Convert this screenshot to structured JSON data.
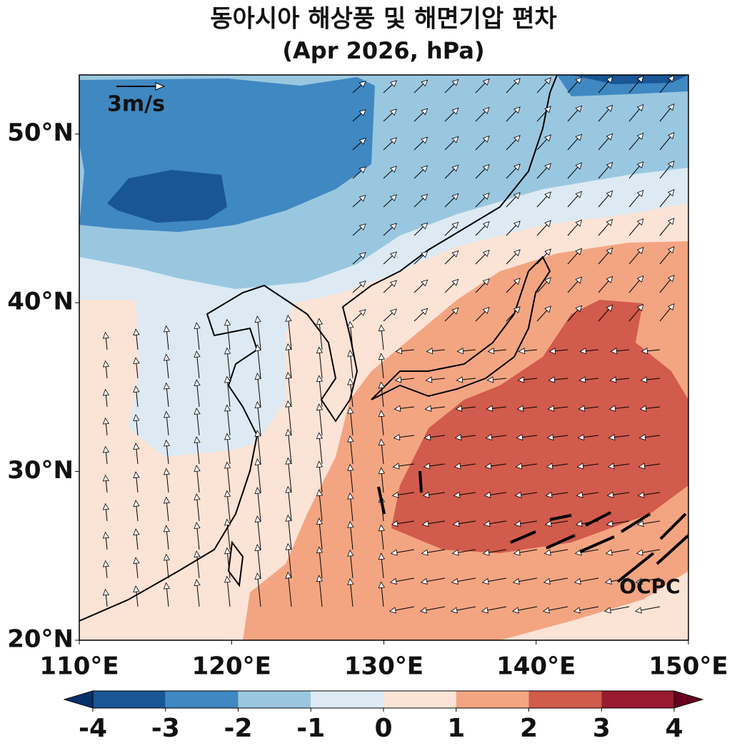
{
  "title": "동아시아 해상풍 및 해면기압 편차",
  "subtitle": "(Apr 2026, hPa)",
  "map": {
    "lon_range": [
      110,
      150
    ],
    "lat_range": [
      20,
      53.5
    ],
    "lon_ticks": [
      {
        "value": 110,
        "label": "110°E"
      },
      {
        "value": 120,
        "label": "120°E"
      },
      {
        "value": 130,
        "label": "130°E"
      },
      {
        "value": 140,
        "label": "140°E"
      },
      {
        "value": 150,
        "label": "150°E"
      }
    ],
    "lat_ticks": [
      {
        "value": 20,
        "label": "20°N"
      },
      {
        "value": 30,
        "label": "30°N"
      },
      {
        "value": 40,
        "label": "40°N"
      },
      {
        "value": 50,
        "label": "50°N"
      }
    ]
  },
  "reference_vector": {
    "label": "3m/s"
  },
  "colorbar": {
    "ticks": [
      -4,
      -3,
      -2,
      -1,
      0,
      1,
      2,
      3,
      4
    ],
    "colors": [
      "#1a5596",
      "#3f88c2",
      "#9ac7e0",
      "#ddeaf3",
      "#fbe3d6",
      "#f3a582",
      "#d15b4c",
      "#9a1a2e"
    ],
    "under_color": "#08306b",
    "over_color": "#67001f"
  },
  "credit": "OCPC"
}
